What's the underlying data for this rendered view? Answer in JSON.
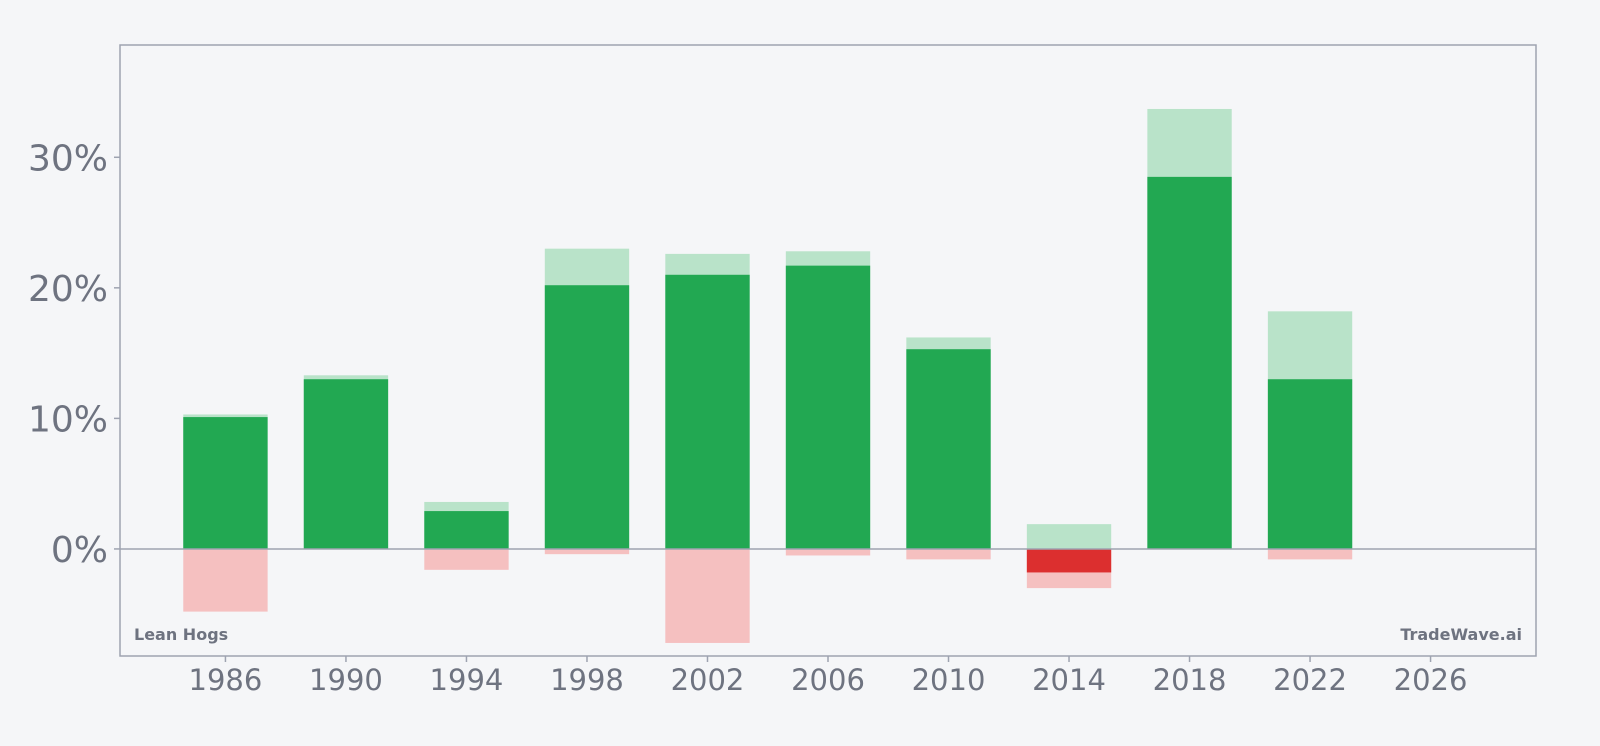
{
  "chart_data": {
    "type": "bar",
    "label_left": "Lean Hogs",
    "label_right": "TradeWave.ai",
    "x_ticks": [
      "1986",
      "1990",
      "1994",
      "1998",
      "2002",
      "2006",
      "2010",
      "2014",
      "2018",
      "2022",
      "2026"
    ],
    "y_ticks": [
      {
        "value": 0,
        "label": "0%"
      },
      {
        "value": 10,
        "label": "10%"
      },
      {
        "value": 20,
        "label": "20%"
      },
      {
        "value": 30,
        "label": "30%"
      }
    ],
    "xlim": [
      1982.5,
      2029.5
    ],
    "ylim": [
      -8.2,
      38.6
    ],
    "bar_width_years": 2.8,
    "series": [
      {
        "key": "positive_range",
        "color": "#b9e3c9"
      },
      {
        "key": "negative_range",
        "color": "#f5c0c0"
      },
      {
        "key": "value",
        "color_positive": "#22a852",
        "color_negative": "#dc2f2f"
      }
    ],
    "bars": [
      {
        "x": 1986,
        "value": 10.1,
        "high": 10.3,
        "low": -4.8
      },
      {
        "x": 1990,
        "value": 13.0,
        "high": 13.3,
        "low": 0
      },
      {
        "x": 1994,
        "value": 2.9,
        "high": 3.6,
        "low": -1.6
      },
      {
        "x": 1998,
        "value": 20.2,
        "high": 23.0,
        "low": -0.4
      },
      {
        "x": 2002,
        "value": 21.0,
        "high": 22.6,
        "low": -7.2
      },
      {
        "x": 2006,
        "value": 21.7,
        "high": 22.8,
        "low": -0.5
      },
      {
        "x": 2010,
        "value": 15.3,
        "high": 16.2,
        "low": -0.8
      },
      {
        "x": 2014,
        "value": -1.8,
        "high": 1.9,
        "low": -3.0
      },
      {
        "x": 2018,
        "value": 28.5,
        "high": 33.7,
        "low": 0
      },
      {
        "x": 2022,
        "value": 13.0,
        "high": 18.2,
        "low": -0.8
      }
    ],
    "grid": false,
    "zero_line": true
  }
}
